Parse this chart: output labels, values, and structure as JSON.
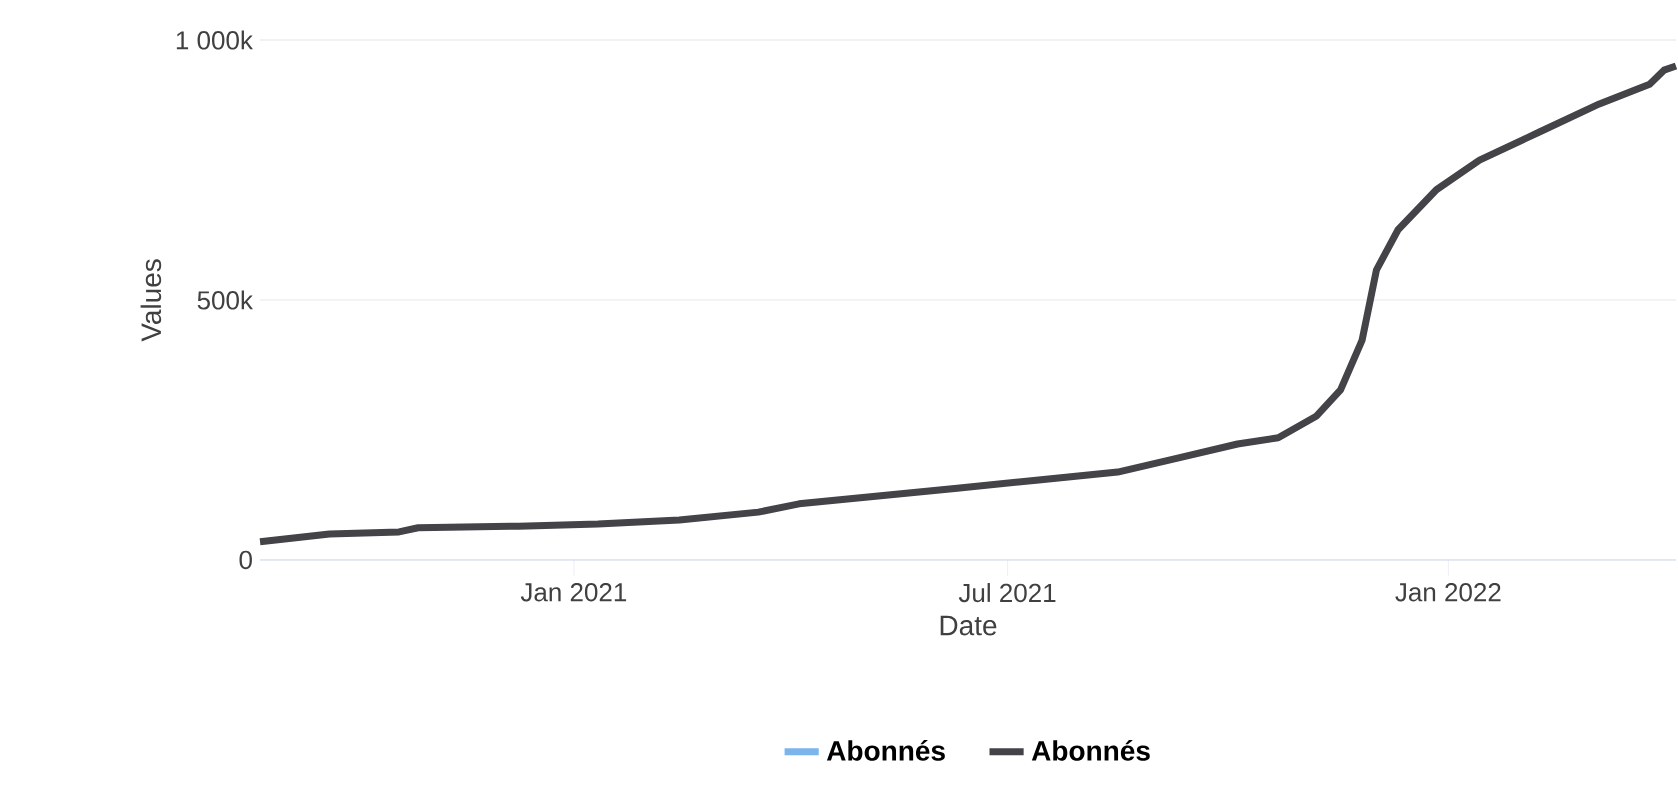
{
  "chart_data": {
    "type": "line",
    "xlabel": "Date",
    "ylabel": "Values",
    "x": [
      "2020-08-23",
      "2020-09-21",
      "2020-10-20",
      "2020-10-28",
      "2020-12-09",
      "2021-01-11",
      "2021-02-14",
      "2021-03-19",
      "2021-04-05",
      "2021-05-08",
      "2021-06-10",
      "2021-07-14",
      "2021-08-16",
      "2021-09-10",
      "2021-10-05",
      "2021-10-22",
      "2021-11-07",
      "2021-11-17",
      "2021-11-26",
      "2021-12-02",
      "2021-12-11",
      "2021-12-27",
      "2022-01-14",
      "2022-02-08",
      "2022-03-05",
      "2022-03-26",
      "2022-04-01",
      "2022-04-06"
    ],
    "series": [
      {
        "name": "Abonnés",
        "color": "#7cb5ec",
        "values": [
          null,
          null,
          null,
          null,
          null,
          null,
          null,
          null,
          null,
          null,
          null,
          null,
          null,
          null,
          null,
          null,
          null,
          null,
          null,
          null,
          null,
          null,
          null,
          null,
          null,
          null,
          null,
          null
        ]
      },
      {
        "name": "Abonnés",
        "color": "#434348",
        "values": [
          35,
          50,
          54,
          62,
          65,
          69,
          77,
          92,
          108,
          123,
          138,
          154,
          169,
          196,
          223,
          235,
          277,
          327,
          423,
          558,
          635,
          712,
          769,
          823,
          877,
          915,
          942,
          950
        ]
      }
    ],
    "xlim": [
      "2020-08-23",
      "2022-04-06"
    ],
    "xticks": [
      {
        "value": "2021-01-01",
        "label": "Jan 2021"
      },
      {
        "value": "2021-07-01",
        "label": "Jul 2021"
      },
      {
        "value": "2022-01-01",
        "label": "Jan 2022"
      }
    ],
    "ylim": [
      0,
      1000
    ],
    "yticks": [
      {
        "value": 0,
        "label": "0"
      },
      {
        "value": 500,
        "label": "500k"
      },
      {
        "value": 1000,
        "label": "1 000k"
      }
    ],
    "grid": "y",
    "legend": "bottom",
    "marker": "none",
    "line_style": "solid"
  }
}
